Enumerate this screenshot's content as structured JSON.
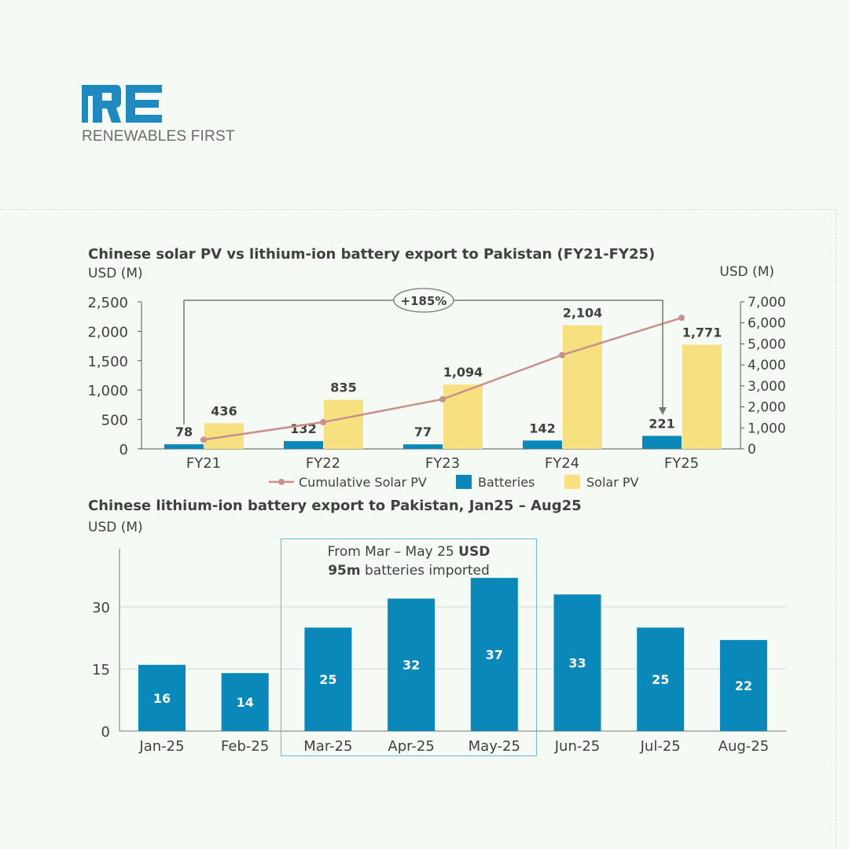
{
  "brand": {
    "logo_letters": "RE",
    "name": "RENEWABLES FIRST",
    "color": "#1f8ac0"
  },
  "colors": {
    "batteries": "#0a88ba",
    "solar": "#f6e07f",
    "cumulative": "#c9908b",
    "axis": "#404040",
    "annotation_box": "#6cb8d8"
  },
  "chart_data": [
    {
      "type": "bar",
      "title": "Chinese solar PV vs lithium-ion battery export to Pakistan (FY21-FY25)",
      "ylabel": "USD (M)",
      "y2label": "USD (M)",
      "categories": [
        "FY21",
        "FY22",
        "FY23",
        "FY24",
        "FY25"
      ],
      "ylim": [
        0,
        2500
      ],
      "yticks": [
        "0",
        "500",
        "1,000",
        "1,500",
        "2,000",
        "2,500"
      ],
      "y2lim": [
        0,
        7000
      ],
      "y2ticks": [
        "0",
        "1,000",
        "2,000",
        "3,000",
        "4,000",
        "5,000",
        "6,000",
        "7,000"
      ],
      "series": [
        {
          "name": "Cumulative Solar PV",
          "type": "line",
          "axis": "right",
          "values": [
            436,
            1271,
            2365,
            4469,
            6240
          ]
        },
        {
          "name": "Batteries",
          "type": "bar",
          "axis": "left",
          "values": [
            78,
            132,
            77,
            142,
            221
          ],
          "labels": [
            "78",
            "132",
            "77",
            "142",
            "221"
          ]
        },
        {
          "name": "Solar PV",
          "type": "bar",
          "axis": "left",
          "values": [
            436,
            835,
            1094,
            2104,
            1771
          ],
          "labels": [
            "436",
            "835",
            "1,094",
            "2,104",
            "1,771"
          ]
        }
      ],
      "annotation": "+185%",
      "legend": "bottom",
      "grid": false
    },
    {
      "type": "bar",
      "title": "Chinese lithium-ion battery export to Pakistan, Jan25 – Aug25",
      "ylabel": "USD (M)",
      "categories": [
        "Jan-25",
        "Feb-25",
        "Mar-25",
        "Apr-25",
        "May-25",
        "Jun-25",
        "Jul-25",
        "Aug-25"
      ],
      "values": [
        16,
        14,
        25,
        32,
        37,
        33,
        25,
        22
      ],
      "labels": [
        "16",
        "14",
        "25",
        "32",
        "37",
        "33",
        "25",
        "22"
      ],
      "ylim": [
        0,
        44
      ],
      "yticks": [
        "0",
        "15",
        "30"
      ],
      "grid": true,
      "annotation": {
        "line1": "From Mar – May 25 ",
        "line1_bold": "USD",
        "line2_bold": "95m",
        "line2": " batteries imported",
        "range": [
          "Mar-25",
          "May-25"
        ]
      }
    }
  ]
}
